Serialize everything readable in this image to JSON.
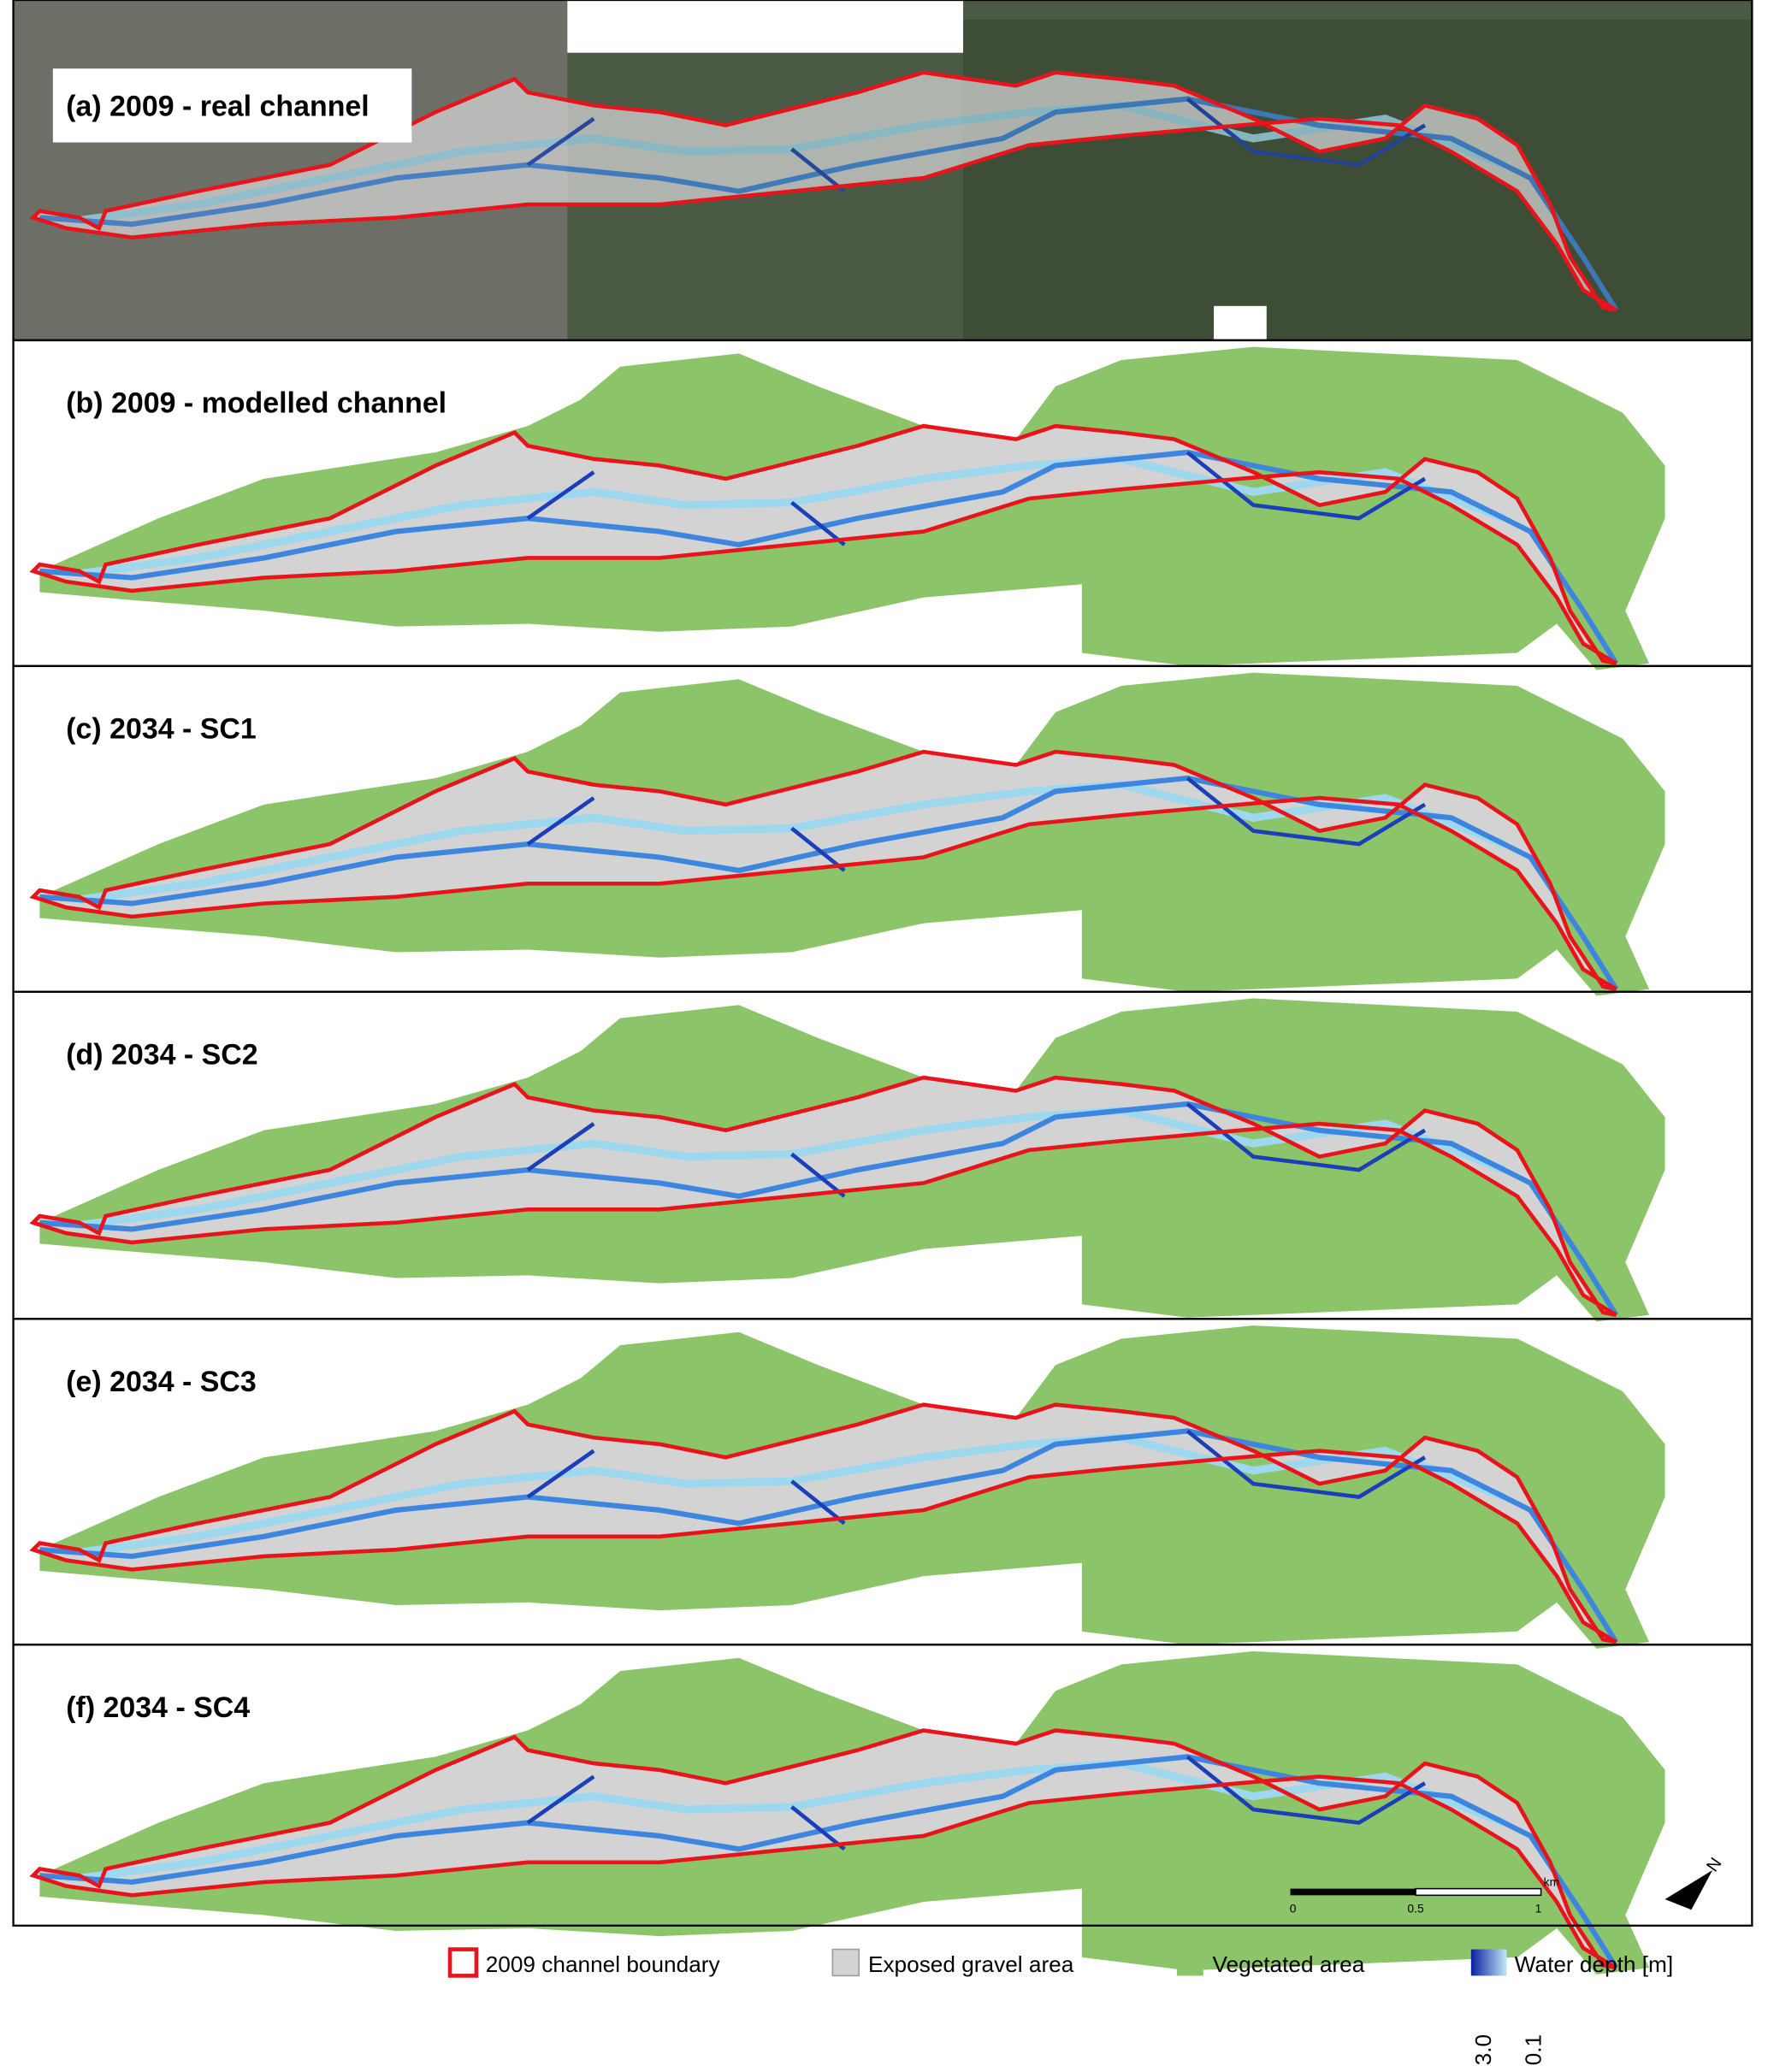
{
  "panels": [
    {
      "label": "(a) 2009 - real channel"
    },
    {
      "label": "(b) 2009 - modelled channel"
    },
    {
      "label": "(c) 2034 - SC1"
    },
    {
      "label": "(d) 2034 - SC2"
    },
    {
      "label": "(e) 2034 - SC3"
    },
    {
      "label": "(f) 2034 - SC4"
    }
  ],
  "scale_bar": {
    "unit": "km",
    "labels": [
      "0",
      "0.5",
      "1"
    ]
  },
  "north": "N",
  "legend": {
    "boundary": "2009 channel boundary",
    "gravel": "Exposed gravel area",
    "vegetation": "Vegetated area",
    "water": "Water depth [m]",
    "water_max": "3.0",
    "water_min": "0.1"
  }
}
